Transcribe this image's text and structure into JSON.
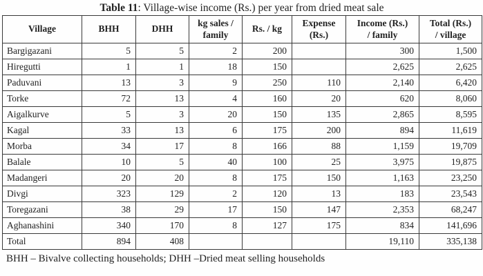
{
  "title": {
    "label": "Table 11",
    "text": ": Village-wise income (Rs.) per year from dried meat sale"
  },
  "table": {
    "headers": [
      [
        "Village"
      ],
      [
        "BHH"
      ],
      [
        "DHH"
      ],
      [
        "kg sales /",
        "family"
      ],
      [
        "Rs. / kg"
      ],
      [
        "Expense",
        "(Rs.)"
      ],
      [
        "Income (Rs.)",
        "/ family"
      ],
      [
        "Total (Rs.)",
        "/ village"
      ]
    ],
    "rows": [
      [
        "Bargigazani",
        "5",
        "5",
        "2",
        "200",
        "",
        "300",
        "1,500"
      ],
      [
        "Hiregutti",
        "1",
        "1",
        "18",
        "150",
        "",
        "2,625",
        "2,625"
      ],
      [
        "Paduvani",
        "13",
        "3",
        "9",
        "250",
        "110",
        "2,140",
        "6,420"
      ],
      [
        "Torke",
        "72",
        "13",
        "4",
        "160",
        "20",
        "620",
        "8,060"
      ],
      [
        "Aigalkurve",
        "5",
        "3",
        "20",
        "150",
        "135",
        "2,865",
        "8,595"
      ],
      [
        "Kagal",
        "33",
        "13",
        "6",
        "175",
        "200",
        "894",
        "11,619"
      ],
      [
        "Morba",
        "34",
        "17",
        "8",
        "166",
        "88",
        "1,159",
        "19,709"
      ],
      [
        "Balale",
        "10",
        "5",
        "40",
        "100",
        "25",
        "3,975",
        "19,875"
      ],
      [
        "Madangeri",
        "20",
        "20",
        "8",
        "175",
        "150",
        "1,163",
        "23,250"
      ],
      [
        "Divgi",
        "323",
        "129",
        "2",
        "120",
        "13",
        "183",
        "23,543"
      ],
      [
        "Toregazani",
        "38",
        "29",
        "17",
        "150",
        "147",
        "2,353",
        "68,247"
      ],
      [
        "Aghanashini",
        "340",
        "170",
        "8",
        "127",
        "175",
        "834",
        "141,696"
      ],
      [
        "Total",
        "894",
        "408",
        "",
        "",
        "",
        "19,110",
        "335,138"
      ]
    ]
  },
  "footnote": "BHH – Bivalve collecting households; DHH –Dried meat selling households",
  "colors": {
    "text": "#222222",
    "border": "#383838",
    "background": "#fefefe"
  }
}
